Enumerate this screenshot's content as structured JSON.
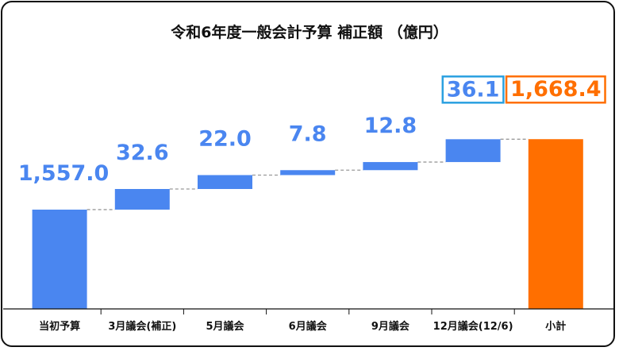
{
  "chart_data": {
    "type": "waterfall",
    "title": "令和6年度一般会計予算 補正額 （億円）",
    "categories": [
      "当初予算",
      "3月議会(補正)",
      "5月議会",
      "6月議会",
      "9月議会",
      "12月議会(12/6)",
      "小計"
    ],
    "values": [
      1557.0,
      32.6,
      22.0,
      7.8,
      12.8,
      36.1,
      1668.4
    ],
    "labels": [
      "1,557.0",
      "32.6",
      "22.0",
      "7.8",
      "12.8",
      "36.1",
      "1,668.4"
    ],
    "kinds": [
      "total",
      "delta",
      "delta",
      "delta",
      "delta",
      "delta",
      "total"
    ],
    "highlighted": [
      5,
      6
    ],
    "colors": {
      "bar": "#4a86f0",
      "total_bar": "#ff6f00",
      "label": "#4a86f0",
      "total_label": "#ff6f00",
      "highlight_box_delta": "#2aa0e0",
      "highlight_box_total": "#ff6f00",
      "connector": "#9a9a9a"
    }
  }
}
